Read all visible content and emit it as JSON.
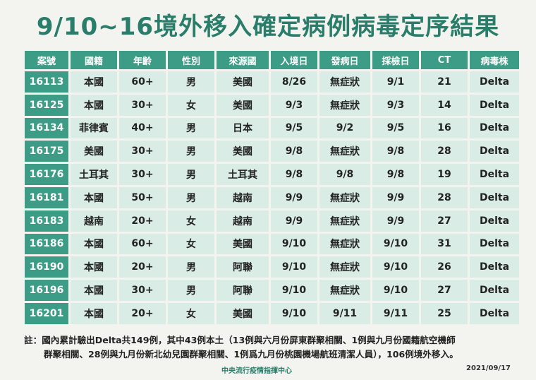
{
  "title": "9/10~16境外移入確定病例病毒定序結果",
  "table": {
    "headers": [
      "案號",
      "國籍",
      "年齡",
      "性別",
      "來源國",
      "入境日",
      "發病日",
      "採檢日",
      "CT",
      "病毒株"
    ],
    "rows": [
      [
        "16113",
        "本國",
        "60+",
        "男",
        "美國",
        "8/26",
        "無症狀",
        "9/1",
        "21",
        "Delta"
      ],
      [
        "16125",
        "本國",
        "30+",
        "女",
        "美國",
        "9/3",
        "無症狀",
        "9/3",
        "14",
        "Delta"
      ],
      [
        "16134",
        "菲律賓",
        "40+",
        "男",
        "日本",
        "9/5",
        "9/2",
        "9/5",
        "16",
        "Delta"
      ],
      [
        "16175",
        "美國",
        "30+",
        "男",
        "美國",
        "9/8",
        "無症狀",
        "9/8",
        "28",
        "Delta"
      ],
      [
        "16176",
        "土耳其",
        "30+",
        "男",
        "土耳其",
        "9/8",
        "9/8",
        "9/8",
        "19",
        "Delta"
      ],
      [
        "16181",
        "本國",
        "50+",
        "男",
        "越南",
        "9/9",
        "無症狀",
        "9/9",
        "28",
        "Delta"
      ],
      [
        "16183",
        "越南",
        "20+",
        "女",
        "越南",
        "9/9",
        "無症狀",
        "9/9",
        "27",
        "Delta"
      ],
      [
        "16186",
        "本國",
        "60+",
        "女",
        "美國",
        "9/10",
        "無症狀",
        "9/10",
        "31",
        "Delta"
      ],
      [
        "16190",
        "本國",
        "20+",
        "男",
        "阿聯",
        "9/10",
        "無症狀",
        "9/10",
        "26",
        "Delta"
      ],
      [
        "16196",
        "本國",
        "30+",
        "男",
        "阿聯",
        "9/10",
        "無症狀",
        "9/10",
        "27",
        "Delta"
      ],
      [
        "16201",
        "本國",
        "20+",
        "女",
        "美國",
        "9/10",
        "9/11",
        "9/11",
        "25",
        "Delta"
      ]
    ]
  },
  "note": {
    "line1": "註：國內累計驗出Delta共149例，其中43例本土（13例與六月份屏東群聚相關、1例與九月份國籍航空機師",
    "line2": "群聚相關、28例與九月份新北幼兒園群聚相關、1例爲九月份桃園機場航班清潔人員），106例境外移入。"
  },
  "footer": {
    "agency": "中央流行疫情指揮中心",
    "date": "2021/09/17"
  }
}
